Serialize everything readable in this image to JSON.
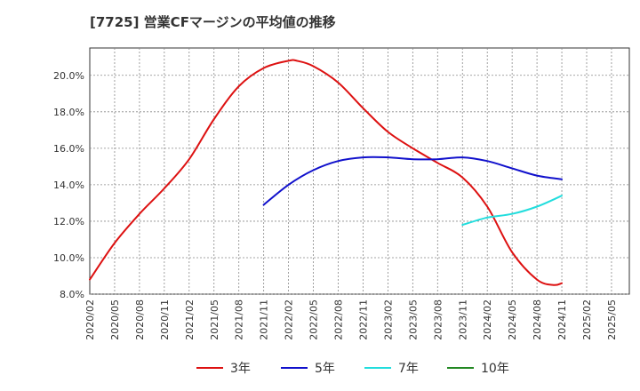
{
  "chart_data": {
    "type": "line",
    "title": "[7725]  営業CFマージンの平均値の推移",
    "xlabel": "",
    "ylabel": "",
    "ylim": [
      8.0,
      21.5
    ],
    "y_ticks": [
      "8.0%",
      "10.0%",
      "12.0%",
      "14.0%",
      "16.0%",
      "18.0%",
      "20.0%"
    ],
    "y_tick_values": [
      8,
      10,
      12,
      14,
      16,
      18,
      20
    ],
    "x_ticks": [
      "2020/02",
      "2020/05",
      "2020/08",
      "2020/11",
      "2021/02",
      "2021/05",
      "2021/08",
      "2021/11",
      "2022/02",
      "2022/05",
      "2022/08",
      "2022/11",
      "2023/02",
      "2023/05",
      "2023/08",
      "2023/11",
      "2024/02",
      "2024/05",
      "2024/08",
      "2024/11",
      "2025/02",
      "2025/05"
    ],
    "grid": true,
    "legend_position": "bottom",
    "series": [
      {
        "name": "3年",
        "color": "#dd1111",
        "x": [
          "2020/02",
          "2020/05",
          "2020/08",
          "2020/11",
          "2021/02",
          "2021/05",
          "2021/08",
          "2021/11",
          "2022/02",
          "2022/03",
          "2022/05",
          "2022/08",
          "2022/11",
          "2023/02",
          "2023/05",
          "2023/08",
          "2023/11",
          "2024/02",
          "2024/05",
          "2024/08",
          "2024/10",
          "2024/11"
        ],
        "values": [
          8.8,
          10.8,
          12.4,
          13.8,
          15.4,
          17.6,
          19.4,
          20.4,
          20.8,
          20.8,
          20.5,
          19.6,
          18.2,
          16.9,
          16.0,
          15.2,
          14.4,
          12.8,
          10.3,
          8.8,
          8.5,
          8.6
        ]
      },
      {
        "name": "5年",
        "color": "#1111cc",
        "x": [
          "2021/11",
          "2022/02",
          "2022/05",
          "2022/08",
          "2022/11",
          "2023/02",
          "2023/05",
          "2023/08",
          "2023/11",
          "2024/02",
          "2024/05",
          "2024/08",
          "2024/11"
        ],
        "values": [
          12.9,
          14.0,
          14.8,
          15.3,
          15.5,
          15.5,
          15.4,
          15.4,
          15.5,
          15.3,
          14.9,
          14.5,
          14.3
        ]
      },
      {
        "name": "7年",
        "color": "#22dddd",
        "x": [
          "2023/11",
          "2024/02",
          "2024/05",
          "2024/08",
          "2024/11"
        ],
        "values": [
          11.8,
          12.2,
          12.4,
          12.8,
          13.4
        ]
      },
      {
        "name": "10年",
        "color": "#228822",
        "x": [],
        "values": []
      }
    ]
  }
}
